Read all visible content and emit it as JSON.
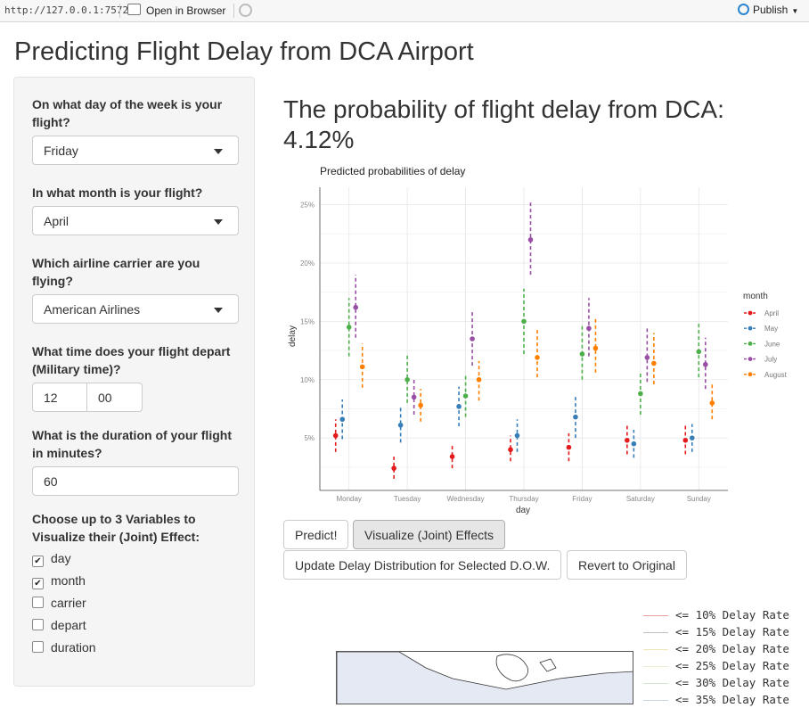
{
  "topbar": {
    "url": "http://127.0.0.1:7572",
    "open_browser": "Open in Browser",
    "publish": "Publish"
  },
  "app_title": "Predicting Flight Delay from DCA Airport",
  "sidebar": {
    "dow_label": "On what day of the week is your flight?",
    "dow_value": "Friday",
    "month_label": "In what month is your flight?",
    "month_value": "April",
    "carrier_label": "Which airline carrier are you flying?",
    "carrier_value": "American Airlines",
    "depart_label": "What time does your flight depart (Military time)?",
    "depart_hour": "12",
    "depart_min": "00",
    "duration_label": "What is the duration of your flight in minutes?",
    "duration_value": "60",
    "vars_label": "Choose up to 3 Variables to Visualize their (Joint) Effect:",
    "vars": [
      {
        "label": "day",
        "checked": true
      },
      {
        "label": "month",
        "checked": true
      },
      {
        "label": "carrier",
        "checked": false
      },
      {
        "label": "depart",
        "checked": false
      },
      {
        "label": "duration",
        "checked": false
      }
    ]
  },
  "main": {
    "headline": "The probability of flight delay from DCA: 4.12%"
  },
  "buttons": {
    "predict": "Predict!",
    "visualize": "Visualize (Joint) Effects",
    "update": "Update Delay Distribution for Selected D.O.W.",
    "revert": "Revert to Original"
  },
  "chart_data": {
    "type": "scatter",
    "title": "Predicted probabilities of delay",
    "xlabel": "day",
    "ylabel": "delay",
    "categories": [
      "Monday",
      "Tuesday",
      "Wednesday",
      "Thursday",
      "Friday",
      "Saturday",
      "Sunday"
    ],
    "yticks": [
      "5%",
      "10%",
      "15%",
      "20%",
      "25%"
    ],
    "ylim": [
      0.5,
      26.5
    ],
    "legend_title": "month",
    "legend_position": "right",
    "grid": true,
    "series": [
      {
        "name": "April",
        "color": "#e41a1c",
        "values": [
          5.2,
          2.4,
          3.4,
          4.0,
          4.2,
          4.8,
          4.8
        ],
        "lower": [
          3.8,
          1.5,
          2.4,
          3.0,
          3.0,
          3.6,
          3.6
        ],
        "upper": [
          6.6,
          3.4,
          4.4,
          5.2,
          5.4,
          6.2,
          6.2
        ]
      },
      {
        "name": "May",
        "color": "#377eb8",
        "values": [
          6.6,
          6.1,
          7.7,
          5.2,
          6.8,
          4.5,
          5.0
        ],
        "lower": [
          4.9,
          4.6,
          6.0,
          3.8,
          5.0,
          3.3,
          3.8
        ],
        "upper": [
          8.3,
          7.6,
          9.4,
          6.6,
          8.6,
          5.7,
          6.2
        ]
      },
      {
        "name": "June",
        "color": "#4daf4a",
        "values": [
          14.5,
          10.0,
          8.6,
          15.0,
          12.2,
          8.8,
          12.4
        ],
        "lower": [
          12.0,
          8.0,
          6.8,
          12.2,
          10.0,
          7.0,
          10.2
        ],
        "upper": [
          17.0,
          12.2,
          10.4,
          17.8,
          14.6,
          10.6,
          14.8
        ]
      },
      {
        "name": "July",
        "color": "#984ea3",
        "values": [
          16.2,
          8.5,
          13.5,
          22.0,
          14.4,
          11.9,
          11.3
        ],
        "lower": [
          13.6,
          7.0,
          11.2,
          19.0,
          12.0,
          9.8,
          9.2
        ],
        "upper": [
          19.0,
          10.2,
          16.0,
          25.2,
          17.0,
          14.4,
          13.6
        ]
      },
      {
        "name": "August",
        "color": "#ff7f00",
        "values": [
          11.1,
          7.8,
          10.0,
          11.9,
          12.7,
          11.4,
          8.0
        ],
        "lower": [
          9.3,
          6.4,
          8.2,
          10.2,
          10.6,
          9.6,
          6.6
        ],
        "upper": [
          13.1,
          9.2,
          11.6,
          14.4,
          15.2,
          14.0,
          9.6
        ]
      }
    ]
  },
  "rate_legend": [
    {
      "label": "<= 10% Delay Rate",
      "color": "#e8a0a0"
    },
    {
      "label": "<= 15% Delay Rate",
      "color": "#c0c0c0"
    },
    {
      "label": "<= 20% Delay Rate",
      "color": "#f0e6b0"
    },
    {
      "label": "<= 25% Delay Rate",
      "color": "#e6f0d0"
    },
    {
      "label": "<= 30% Delay Rate",
      "color": "#d0e8d0"
    },
    {
      "label": "<= 35% Delay Rate",
      "color": "#c8d8e8"
    }
  ]
}
